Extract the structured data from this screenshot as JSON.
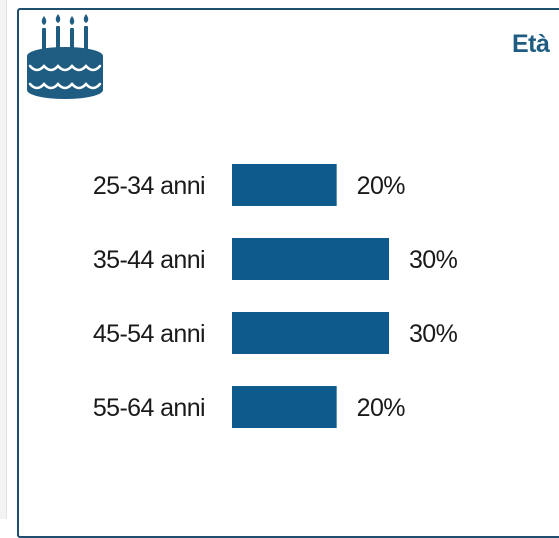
{
  "section": {
    "title": "Età",
    "icon": "birthday-cake-icon",
    "accent_color": "#0f5a8c"
  },
  "chart_data": {
    "type": "bar",
    "orientation": "horizontal",
    "categories": [
      "25-34 anni",
      "35-44 anni",
      "45-54 anni",
      "55-64 anni"
    ],
    "values": [
      20,
      30,
      30,
      20
    ],
    "value_labels": [
      "20%",
      "30%",
      "30%",
      "20%"
    ],
    "unit": "%",
    "bar_color": "#0f5a8c",
    "grid": false,
    "legend": "none"
  }
}
